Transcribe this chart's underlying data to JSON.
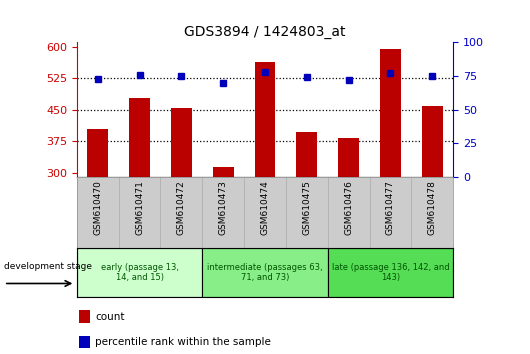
{
  "title": "GDS3894 / 1424803_at",
  "samples": [
    "GSM610470",
    "GSM610471",
    "GSM610472",
    "GSM610473",
    "GSM610474",
    "GSM610475",
    "GSM610476",
    "GSM610477",
    "GSM610478"
  ],
  "counts": [
    405,
    478,
    455,
    313,
    563,
    397,
    383,
    595,
    460
  ],
  "percentile_ranks": [
    73,
    76,
    75,
    70,
    78,
    74,
    72,
    77,
    75
  ],
  "ylim_left": [
    290,
    610
  ],
  "ylim_right": [
    0,
    100
  ],
  "yticks_left": [
    300,
    375,
    450,
    525,
    600
  ],
  "yticks_right": [
    0,
    25,
    50,
    75,
    100
  ],
  "bar_color": "#bb0000",
  "dot_color": "#0000bb",
  "title_color": "#000000",
  "left_axis_color": "#cc0000",
  "right_axis_color": "#0000cc",
  "groups": [
    {
      "label": "early (passage 13,\n14, and 15)",
      "start": 0,
      "end": 3,
      "color": "#ccffcc"
    },
    {
      "label": "intermediate (passages 63,\n71, and 73)",
      "start": 3,
      "end": 6,
      "color": "#88ee88"
    },
    {
      "label": "late (passage 136, 142, and\n143)",
      "start": 6,
      "end": 9,
      "color": "#55dd55"
    }
  ],
  "legend_count_label": "count",
  "legend_percentile_label": "percentile rank within the sample",
  "dev_stage_label": "development stage",
  "background_color": "#ffffff",
  "dotted_lines": [
    375,
    450,
    525
  ],
  "xticklabel_bg": "#cccccc",
  "group_text_color": "#005500",
  "bar_width": 0.5
}
